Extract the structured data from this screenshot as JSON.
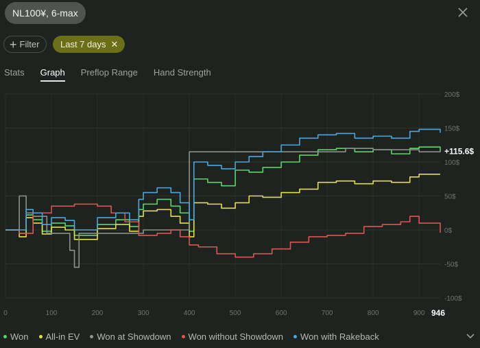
{
  "header": {
    "title": "NL100¥, 6-max",
    "close_icon": "close-icon"
  },
  "filters": {
    "filter_label": "Filter",
    "active_chip": "Last 7 days"
  },
  "tabs": [
    {
      "label": "Stats",
      "active": false
    },
    {
      "label": "Graph",
      "active": true
    },
    {
      "label": "Preflop Range",
      "active": false
    },
    {
      "label": "Hand Strength",
      "active": false
    }
  ],
  "chart_data": {
    "type": "line",
    "xlim": [
      0,
      946
    ],
    "ylim": [
      -100,
      200
    ],
    "x_ticks": [
      0,
      100,
      200,
      300,
      400,
      500,
      600,
      700,
      800,
      900
    ],
    "x_end_label": "946",
    "y_ticks": [
      {
        "value": 200,
        "label": "200$"
      },
      {
        "value": 150,
        "label": "150$"
      },
      {
        "value": 100,
        "label": "100$"
      },
      {
        "value": 50,
        "label": "50$"
      },
      {
        "value": 0,
        "label": "0$"
      },
      {
        "value": -50,
        "label": "-50$"
      },
      {
        "value": -100,
        "label": "-100$"
      }
    ],
    "end_value_label": "+115.6$",
    "end_value": 115.6,
    "grid": true,
    "legend_position": "bottom",
    "series": [
      {
        "name": "Won",
        "color": "#5bd66a",
        "points": [
          [
            0,
            0
          ],
          [
            30,
            -5
          ],
          [
            45,
            22
          ],
          [
            60,
            15
          ],
          [
            80,
            -2
          ],
          [
            100,
            10
          ],
          [
            130,
            6
          ],
          [
            150,
            -8
          ],
          [
            200,
            8
          ],
          [
            240,
            15
          ],
          [
            270,
            5
          ],
          [
            290,
            30
          ],
          [
            300,
            38
          ],
          [
            330,
            45
          ],
          [
            360,
            35
          ],
          [
            380,
            25
          ],
          [
            400,
            -2
          ],
          [
            410,
            75
          ],
          [
            440,
            70
          ],
          [
            470,
            65
          ],
          [
            500,
            88
          ],
          [
            530,
            85
          ],
          [
            560,
            92
          ],
          [
            600,
            100
          ],
          [
            640,
            110
          ],
          [
            680,
            118
          ],
          [
            720,
            120
          ],
          [
            760,
            115
          ],
          [
            800,
            118
          ],
          [
            840,
            112
          ],
          [
            880,
            120
          ],
          [
            900,
            122
          ],
          [
            946,
            115.6
          ]
        ]
      },
      {
        "name": "All-in EV",
        "color": "#e2e04a",
        "points": [
          [
            0,
            0
          ],
          [
            30,
            -10
          ],
          [
            45,
            18
          ],
          [
            60,
            10
          ],
          [
            80,
            -6
          ],
          [
            100,
            4
          ],
          [
            130,
            0
          ],
          [
            150,
            -14
          ],
          [
            200,
            2
          ],
          [
            240,
            8
          ],
          [
            270,
            -2
          ],
          [
            290,
            20
          ],
          [
            300,
            28
          ],
          [
            330,
            30
          ],
          [
            360,
            20
          ],
          [
            380,
            10
          ],
          [
            400,
            -10
          ],
          [
            410,
            40
          ],
          [
            440,
            38
          ],
          [
            470,
            32
          ],
          [
            500,
            40
          ],
          [
            530,
            50
          ],
          [
            560,
            48
          ],
          [
            600,
            55
          ],
          [
            640,
            60
          ],
          [
            680,
            70
          ],
          [
            720,
            72
          ],
          [
            760,
            68
          ],
          [
            800,
            72
          ],
          [
            840,
            70
          ],
          [
            880,
            78
          ],
          [
            900,
            82
          ],
          [
            946,
            82
          ]
        ]
      },
      {
        "name": "Won at Showdown",
        "color": "#8e928e",
        "points": [
          [
            0,
            0
          ],
          [
            30,
            50
          ],
          [
            45,
            25
          ],
          [
            60,
            20
          ],
          [
            90,
            -5
          ],
          [
            140,
            -30
          ],
          [
            150,
            -55
          ],
          [
            160,
            -5
          ],
          [
            260,
            -5
          ],
          [
            300,
            0
          ],
          [
            380,
            0
          ],
          [
            395,
            0
          ],
          [
            400,
            115
          ],
          [
            600,
            115
          ],
          [
            730,
            115
          ],
          [
            740,
            120
          ],
          [
            800,
            118
          ],
          [
            900,
            115
          ],
          [
            946,
            118
          ]
        ]
      },
      {
        "name": "Won without Showdown",
        "color": "#e05454",
        "points": [
          [
            0,
            0
          ],
          [
            30,
            -5
          ],
          [
            60,
            25
          ],
          [
            100,
            35
          ],
          [
            150,
            38
          ],
          [
            200,
            35
          ],
          [
            230,
            25
          ],
          [
            260,
            12
          ],
          [
            290,
            -8
          ],
          [
            330,
            -5
          ],
          [
            360,
            0
          ],
          [
            380,
            -10
          ],
          [
            400,
            -22
          ],
          [
            420,
            -25
          ],
          [
            460,
            -35
          ],
          [
            500,
            -40
          ],
          [
            540,
            -35
          ],
          [
            580,
            -28
          ],
          [
            620,
            -18
          ],
          [
            660,
            -10
          ],
          [
            700,
            -8
          ],
          [
            740,
            -5
          ],
          [
            780,
            5
          ],
          [
            820,
            8
          ],
          [
            860,
            12
          ],
          [
            880,
            20
          ],
          [
            900,
            10
          ],
          [
            946,
            -4
          ]
        ]
      },
      {
        "name": "Won with Rakeback",
        "color": "#4aa7e0",
        "points": [
          [
            0,
            0
          ],
          [
            30,
            0
          ],
          [
            45,
            30
          ],
          [
            60,
            25
          ],
          [
            80,
            8
          ],
          [
            100,
            18
          ],
          [
            130,
            14
          ],
          [
            150,
            0
          ],
          [
            200,
            18
          ],
          [
            240,
            25
          ],
          [
            270,
            15
          ],
          [
            290,
            45
          ],
          [
            300,
            55
          ],
          [
            330,
            62
          ],
          [
            360,
            55
          ],
          [
            380,
            40
          ],
          [
            400,
            15
          ],
          [
            410,
            100
          ],
          [
            440,
            95
          ],
          [
            470,
            90
          ],
          [
            500,
            100
          ],
          [
            530,
            108
          ],
          [
            560,
            115
          ],
          [
            600,
            125
          ],
          [
            640,
            135
          ],
          [
            680,
            140
          ],
          [
            720,
            142
          ],
          [
            760,
            135
          ],
          [
            800,
            138
          ],
          [
            840,
            135
          ],
          [
            880,
            145
          ],
          [
            900,
            148
          ],
          [
            946,
            143
          ]
        ]
      }
    ]
  },
  "legend_toggle_icon": "chevron-down-icon"
}
